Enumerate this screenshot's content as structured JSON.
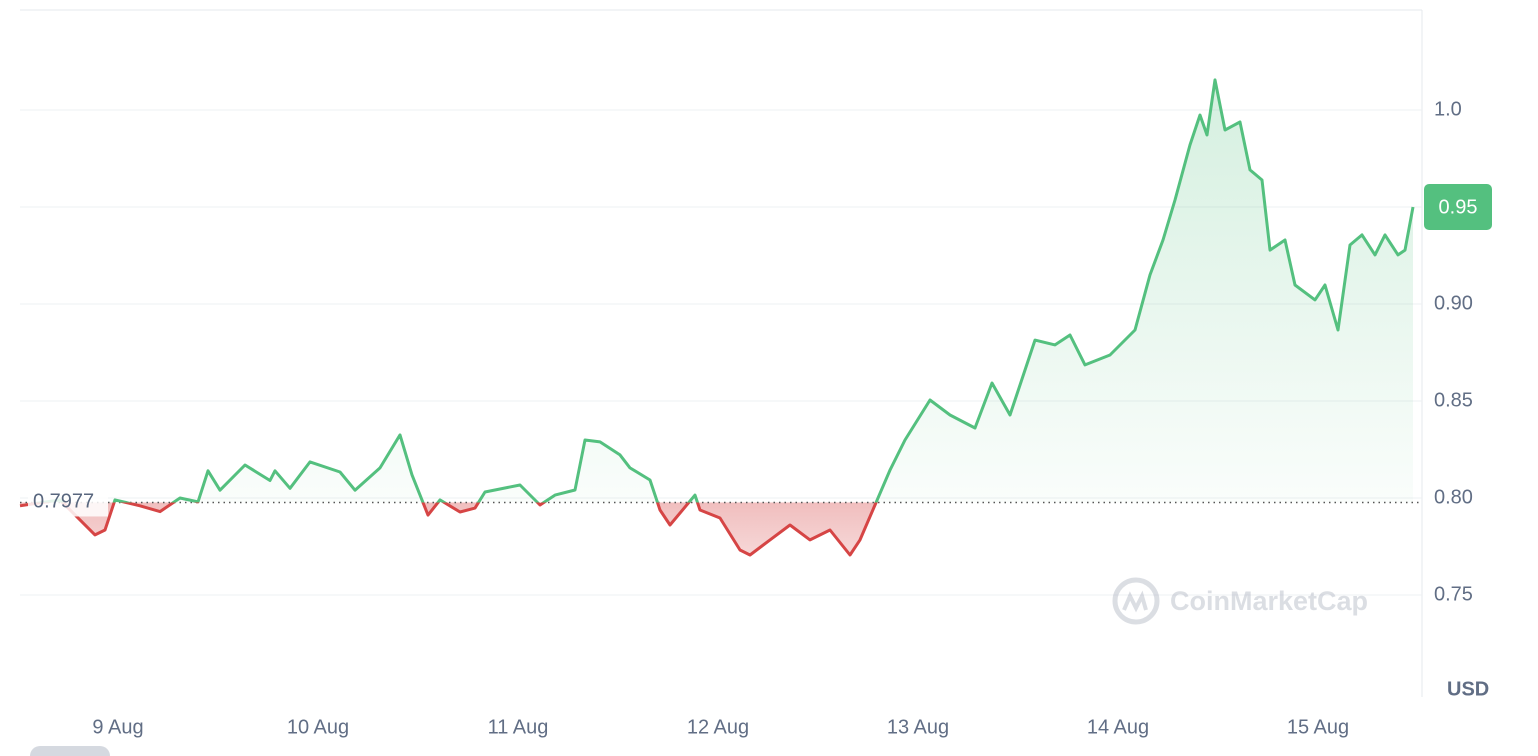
{
  "chart_data": {
    "type": "line",
    "x": [
      8.51,
      8.71,
      8.885,
      8.935,
      8.985,
      9.11,
      9.21,
      9.31,
      9.4,
      9.45,
      9.51,
      9.635,
      9.76,
      9.785,
      9.86,
      9.96,
      10.11,
      10.185,
      10.31,
      10.41,
      10.47,
      10.55,
      10.61,
      10.71,
      10.785,
      10.835,
      11.01,
      11.11,
      11.185,
      11.285,
      11.335,
      11.41,
      11.51,
      11.56,
      11.66,
      11.71,
      11.76,
      11.885,
      11.91,
      12.01,
      12.11,
      12.16,
      12.26,
      12.36,
      12.46,
      12.56,
      12.66,
      12.71,
      12.785,
      12.86,
      12.935,
      13.06,
      13.16,
      13.285,
      13.37,
      13.46,
      13.585,
      13.685,
      13.76,
      13.835,
      13.96,
      14.085,
      14.16,
      14.225,
      14.285,
      14.36,
      14.41,
      14.445,
      14.485,
      14.535,
      14.61,
      14.66,
      14.72,
      14.76,
      14.835,
      14.885,
      14.985,
      15.035,
      15.1,
      15.16,
      15.22,
      15.285,
      15.335,
      15.4,
      15.435,
      15.475
    ],
    "series": [
      {
        "values": [
          0.796,
          0.799,
          0.781,
          0.7835,
          0.799,
          0.796,
          0.793,
          0.8,
          0.798,
          0.814,
          0.804,
          0.817,
          0.809,
          0.814,
          0.805,
          0.8186,
          0.8134,
          0.804,
          0.8155,
          0.8325,
          0.8119,
          0.7912,
          0.799,
          0.7928,
          0.7948,
          0.8031,
          0.8067,
          0.7964,
          0.8015,
          0.8041,
          0.8299,
          0.8289,
          0.8222,
          0.8155,
          0.8093,
          0.7938,
          0.7861,
          0.8015,
          0.7938,
          0.7897,
          0.7732,
          0.7706,
          0.7784,
          0.7861,
          0.7784,
          0.7835,
          0.7706,
          0.7784,
          0.7964,
          0.8144,
          0.8299,
          0.8505,
          0.8428,
          0.8361,
          0.8593,
          0.8428,
          0.8814,
          0.8789,
          0.884,
          0.8686,
          0.8737,
          0.8866,
          0.915,
          0.933,
          0.9536,
          0.982,
          0.9974,
          0.9871,
          1.0155,
          0.9897,
          0.9938,
          0.9691,
          0.9639,
          0.9278,
          0.933,
          0.9098,
          0.9021,
          0.9098,
          0.8866,
          0.9304,
          0.9356,
          0.9253,
          0.9356,
          0.9253,
          0.9278,
          0.95
        ]
      }
    ],
    "colors": {
      "up": "#54c07f",
      "down": "#d64545"
    },
    "baseline": 0.7977,
    "current_price": 0.95,
    "xlim": [
      8.51,
      15.52
    ],
    "xticks": [
      {
        "value": 9,
        "label": "9 Aug"
      },
      {
        "value": 10,
        "label": "10 Aug"
      },
      {
        "value": 11,
        "label": "11 Aug"
      },
      {
        "value": 12,
        "label": "12 Aug"
      },
      {
        "value": 13,
        "label": "13 Aug"
      },
      {
        "value": 14,
        "label": "14 Aug"
      },
      {
        "value": 15,
        "label": "15 Aug"
      }
    ],
    "ylim": [
      0.7,
      1.05
    ],
    "yticks": [
      0.75,
      {
        "value": 0.8,
        "label": "0.80"
      },
      0.85,
      {
        "value": 0.9,
        "label": "0.90"
      },
      0.95,
      {
        "value": 1.0,
        "label": "1.0"
      }
    ],
    "unit": "USD",
    "watermark": "CoinMarketCap",
    "grid": true
  }
}
